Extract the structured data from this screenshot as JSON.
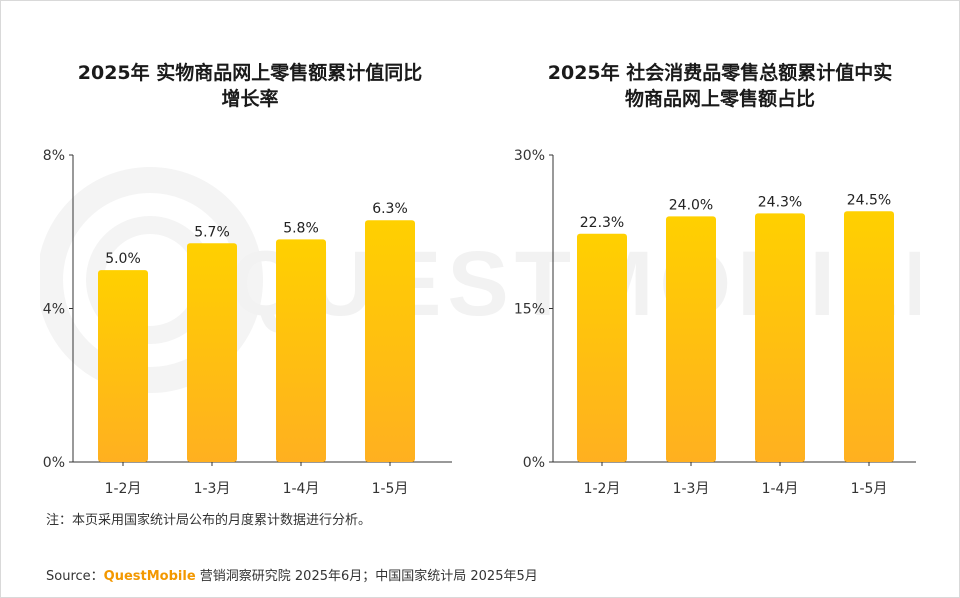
{
  "chart_data": [
    {
      "type": "bar",
      "title": "2025年 实物商品网上零售额累计值同比增长率",
      "categories": [
        "1-2月",
        "1-3月",
        "1-4月",
        "1-5月"
      ],
      "values": [
        5.0,
        5.7,
        5.8,
        6.3
      ],
      "value_labels": [
        "5.0%",
        "5.7%",
        "5.8%",
        "6.3%"
      ],
      "ylim": [
        0,
        8
      ],
      "yticks": [
        0,
        4,
        8
      ],
      "ytick_labels": [
        "0%",
        "4%",
        "8%"
      ],
      "grid": false,
      "color": "#ffc107"
    },
    {
      "type": "bar",
      "title": "2025年 社会消费品零售总额累计值中实物商品网上零售额占比",
      "categories": [
        "1-2月",
        "1-3月",
        "1-4月",
        "1-5月"
      ],
      "values": [
        22.3,
        24.0,
        24.3,
        24.5
      ],
      "value_labels": [
        "22.3%",
        "24.0%",
        "24.3%",
        "24.5%"
      ],
      "ylim": [
        0,
        30
      ],
      "yticks": [
        0,
        15,
        30
      ],
      "ytick_labels": [
        "0%",
        "15%",
        "30%"
      ],
      "grid": false,
      "color": "#ffc107"
    }
  ],
  "titles": {
    "left_line1": "2025年 实物商品网上零售额累计值同比",
    "left_line2": "增长率",
    "right_line1": "2025年 社会消费品零售总额累计值中实",
    "right_line2": "物商品网上零售额占比"
  },
  "note": "注：本页采用国家统计局公布的月度累计数据进行分析。",
  "source": {
    "prefix": "Source：",
    "brand": "QuestMobile",
    "rest": " 营销洞察研究院 2025年6月；中国国家统计局 2025年5月"
  },
  "watermark": "QUESTMOBILE",
  "colors": {
    "bar_top": "#ffd000",
    "bar_bottom": "#ffb020",
    "axis": "#333333",
    "brand": "#f39800"
  }
}
